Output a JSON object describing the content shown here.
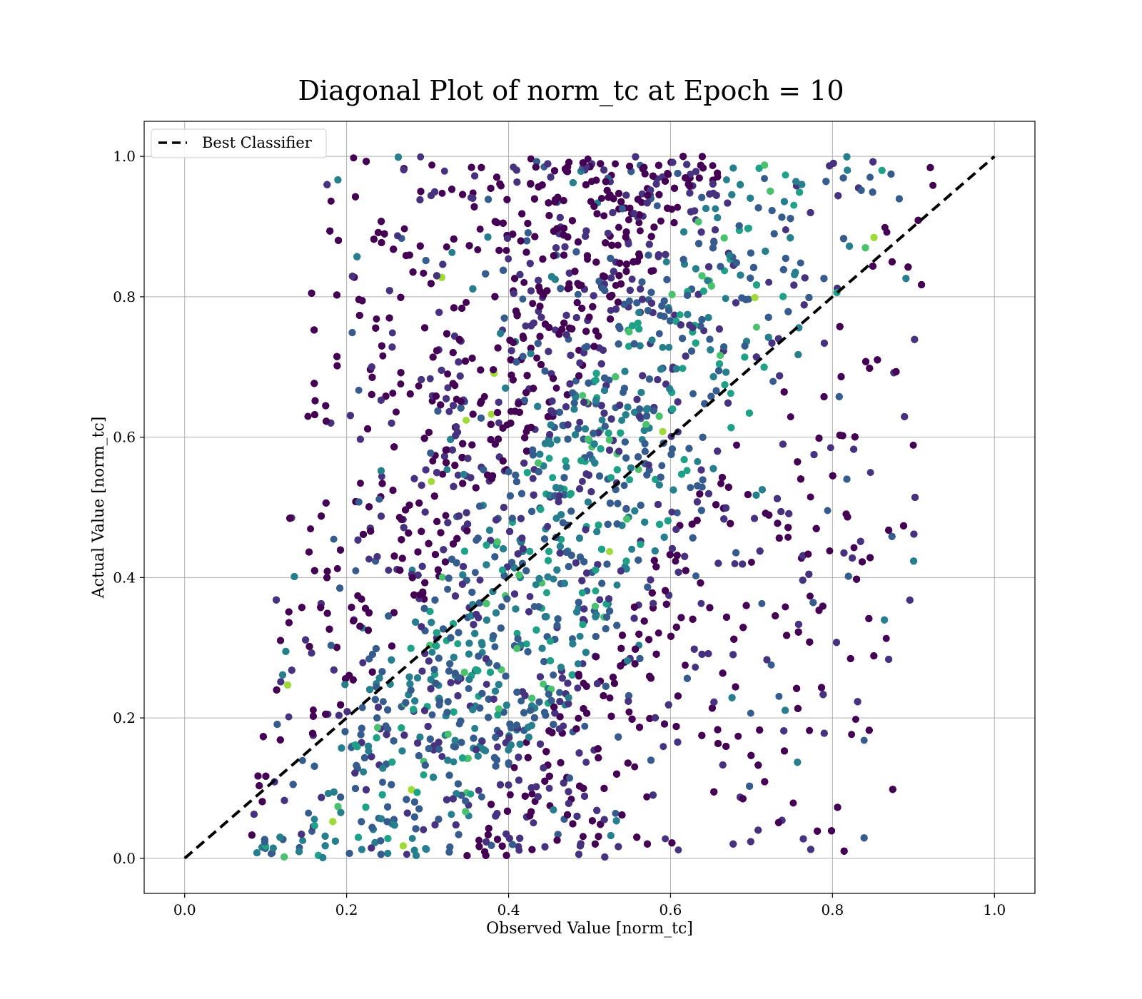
{
  "chart_data": {
    "type": "scatter",
    "title": "Diagonal Plot of norm_tc at Epoch = 10",
    "xlabel": "Observed Value [norm_tc]",
    "ylabel": "Actual Value [norm_tc]",
    "xlim": [
      -0.05,
      1.05
    ],
    "ylim": [
      -0.05,
      1.05
    ],
    "x_ticks": [
      "0.0",
      "0.2",
      "0.4",
      "0.6",
      "0.8",
      "1.0"
    ],
    "y_ticks": [
      "0.0",
      "0.2",
      "0.4",
      "0.6",
      "0.8",
      "1.0"
    ],
    "grid": true,
    "colormap": "viridis",
    "point_color_examples": [
      "#440154",
      "#46327e",
      "#365c8d",
      "#277f8e",
      "#1fa187",
      "#4ac16d",
      "#a0da39"
    ],
    "point_count_estimate": 12000,
    "point_cloud_envelope": {
      "description_units": "data",
      "at_y_0": {
        "x_min": 0.08,
        "x_max": 0.88
      },
      "at_y_1": {
        "x_min": 0.17,
        "x_max": 0.93
      }
    },
    "reference_line": {
      "name": "Best Classifier",
      "style": "dashed",
      "color": "#000000",
      "x": [
        0.0,
        1.0
      ],
      "y": [
        0.0,
        1.0
      ]
    },
    "legend": {
      "placement": "top-left",
      "entries": [
        "Best Classifier"
      ]
    }
  }
}
